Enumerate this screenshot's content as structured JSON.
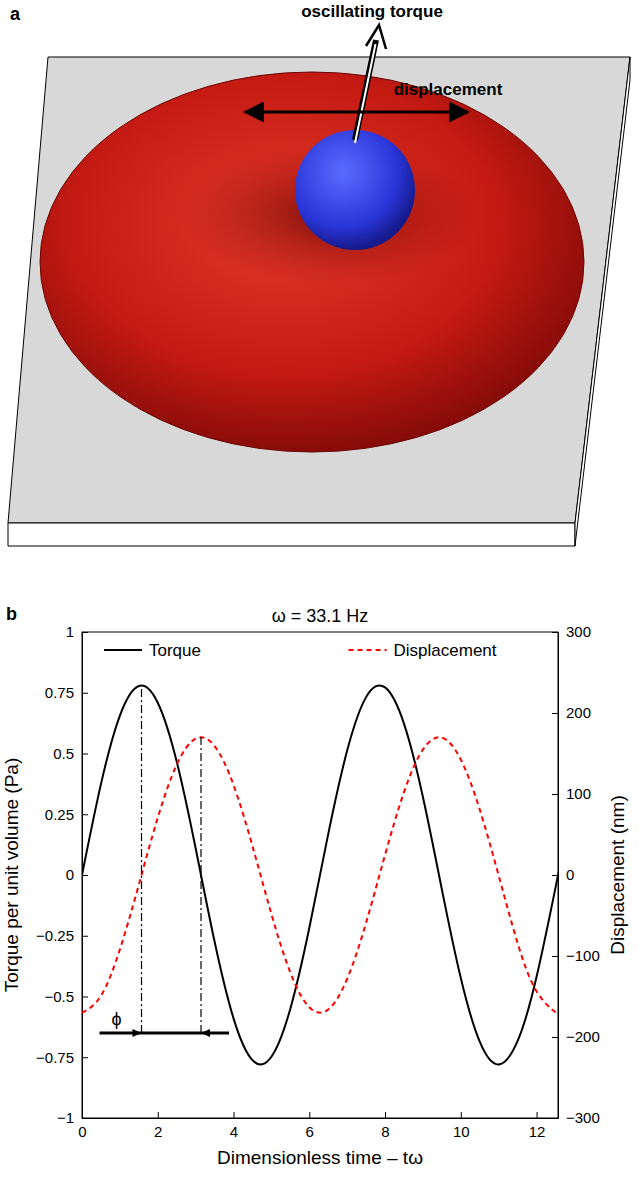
{
  "diagram": {
    "panel_label": "a",
    "annotations": [
      "oscillating torque",
      "displacement"
    ]
  },
  "chart_data": {
    "type": "line",
    "panel_label": "b",
    "title": "ω = 33.1 Hz",
    "x_label": "Dimensionless time – tω",
    "y_label": "Torque per unit volume (Pa)",
    "y2_label": "Displacement (nm)",
    "x": [
      0,
      0.5,
      1,
      1.5,
      2,
      2.5,
      3,
      3.5,
      4,
      4.5,
      5,
      5.5,
      6,
      6.5,
      7,
      7.5,
      8,
      8.5,
      9,
      9.5,
      10,
      10.5,
      11,
      11.5,
      12,
      12.5,
      12.57
    ],
    "series": [
      {
        "name": "Torque",
        "color": "#000000",
        "line_style": "solid",
        "values": [
          0,
          0.374,
          0.656,
          0.778,
          0.709,
          0.467,
          0.11,
          -0.274,
          -0.59,
          -0.762,
          -0.748,
          -0.55,
          -0.218,
          0.168,
          0.512,
          0.732,
          0.772,
          0.623,
          0.321,
          -0.059,
          -0.424,
          -0.686,
          -0.78,
          -0.683,
          -0.419,
          -0.052,
          0.003
        ]
      },
      {
        "name": "Displacement",
        "color": "#ff0000",
        "line_style": "dashed",
        "axis": "y2",
        "values": [
          -170,
          -149.2,
          -91.9,
          -12.0,
          70.7,
          136.2,
          168.3,
          159.2,
          111.1,
          35.8,
          -48.2,
          -120.5,
          -163.2,
          -166.0,
          -128.2,
          -58.9,
          24.7,
          102.3,
          154.9,
          169.5,
          142.6,
          80.8,
          -0.7,
          -84.1,
          -143.5,
          -169.5,
          -170
        ]
      }
    ],
    "xlim": [
      0,
      12.566
    ],
    "xticks": [
      0,
      2,
      4,
      6,
      8,
      10,
      12
    ],
    "ylim": [
      -1,
      1
    ],
    "yticks": [
      {
        "value": -1,
        "label": "−1"
      },
      {
        "value": -0.75,
        "label": "−0.75"
      },
      {
        "value": -0.5,
        "label": "−0.5"
      },
      {
        "value": -0.25,
        "label": "−0.25"
      },
      0,
      0.25,
      0.5,
      0.75,
      1
    ],
    "y2lim": [
      -300,
      300
    ],
    "y2ticks": [
      {
        "value": -300,
        "label": "−300"
      },
      {
        "value": -200,
        "label": "−200"
      },
      {
        "value": -100,
        "label": "−100"
      },
      0,
      100,
      200,
      300
    ],
    "grid": false,
    "legend": "top",
    "annotations": [
      {
        "text": "ϕ",
        "x": [
          1.571,
          3.142
        ],
        "y": -0.65,
        "y_top": [
          0.78,
          0.57
        ]
      }
    ]
  }
}
